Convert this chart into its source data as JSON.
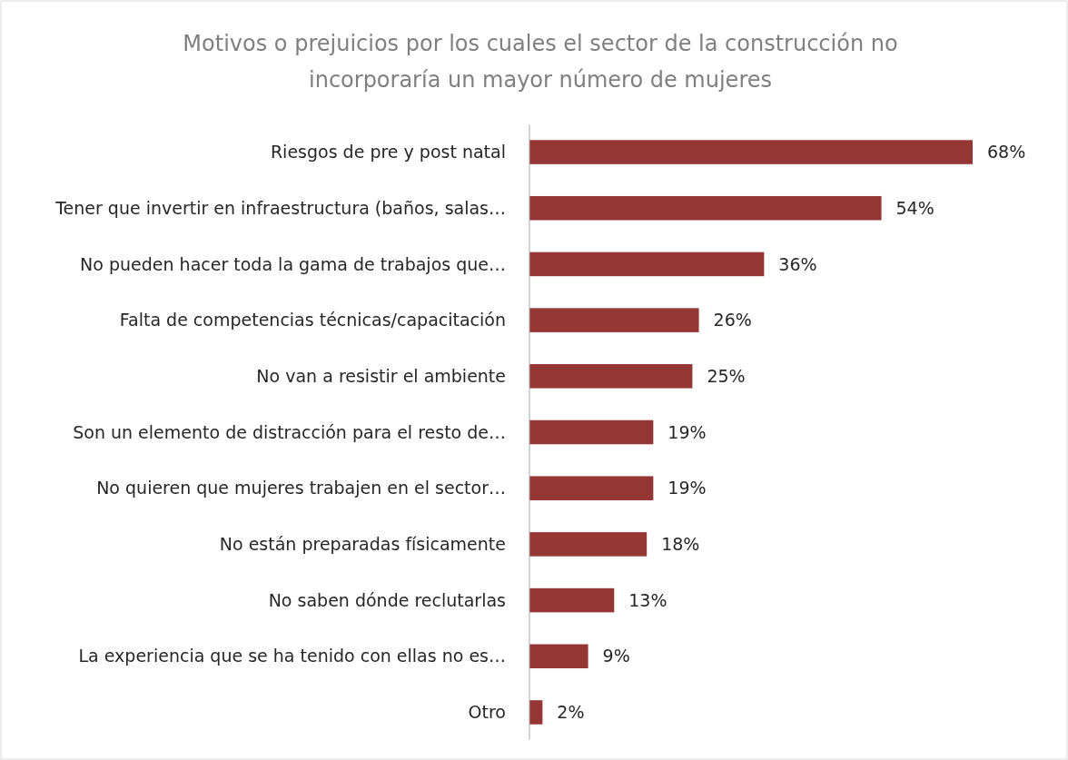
{
  "chart_data": {
    "type": "bar",
    "orientation": "horizontal",
    "title": "Motivos o prejuicios por los cuales el sector de la construcción no\nincorporaría un mayor número de mujeres",
    "categories": [
      "Riesgos de pre y post natal",
      "Tener que invertir en infraestructura (baños, salas…",
      "No pueden hacer toda la gama de trabajos que…",
      "Falta de competencias técnicas/capacitación",
      "No van a resistir el ambiente",
      "Son un elemento de distracción para el resto de…",
      "No quieren que mujeres trabajen en el sector…",
      "No están preparadas físicamente",
      "No saben dónde reclutarlas",
      "La experiencia que se ha tenido con ellas no es…",
      "Otro"
    ],
    "values": [
      68,
      54,
      36,
      26,
      25,
      19,
      19,
      18,
      13,
      9,
      2
    ],
    "value_labels": [
      "68%",
      "54%",
      "36%",
      "26%",
      "25%",
      "19%",
      "19%",
      "18%",
      "13%",
      "9%",
      "2%"
    ],
    "color": "#943634"
  }
}
